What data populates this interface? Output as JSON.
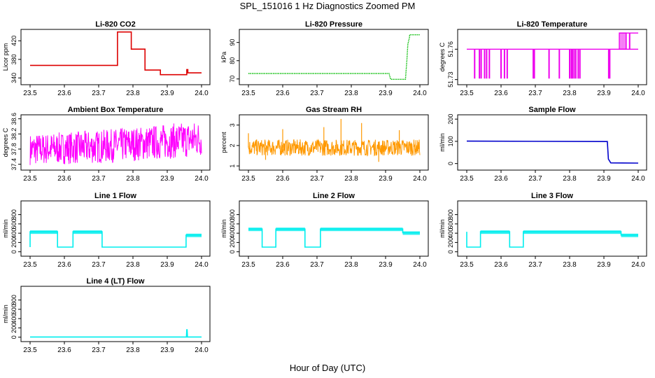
{
  "figure": {
    "title": "SPL_151016  1 Hz Diagnostics Zoomed PM",
    "xlabel": "Hour of Day (UTC)"
  },
  "chart_data": [
    {
      "type": "line",
      "title": "Li-820 CO2",
      "xlabel": "",
      "ylabel": "Licor ppm",
      "xlim": [
        23.5,
        24.0
      ],
      "ylim": [
        330,
        440
      ],
      "xticks": [
        "23.5",
        "23.6",
        "23.7",
        "23.8",
        "23.9",
        "24.0"
      ],
      "yticks": [
        340,
        380,
        420
      ],
      "color": "#dd0000",
      "style": "step",
      "series": [
        {
          "x": [
            23.5,
            23.755,
            23.755,
            23.795,
            23.795,
            23.835,
            23.835,
            23.88,
            23.88,
            23.957,
            23.957,
            23.96,
            23.96,
            24.0
          ],
          "y": [
            367,
            367,
            439,
            439,
            402,
            402,
            357,
            357,
            347,
            347,
            358,
            358,
            351,
            351
          ]
        }
      ]
    },
    {
      "type": "line",
      "title": "Li-820 Pressure",
      "xlabel": "",
      "ylabel": "kPa",
      "xlim": [
        23.5,
        24.0
      ],
      "ylim": [
        68,
        96
      ],
      "xticks": [
        "23.5",
        "23.6",
        "23.7",
        "23.8",
        "23.9",
        "24.0"
      ],
      "yticks": [
        70,
        80,
        90
      ],
      "color": "#00bb00",
      "style": "dotted",
      "series": [
        {
          "x": [
            23.5,
            23.91,
            23.915,
            23.958,
            23.962,
            23.965,
            23.97,
            23.97,
            24.0
          ],
          "y": [
            73,
            73,
            69.8,
            69.8,
            80,
            89,
            93,
            94.2,
            94.2
          ]
        }
      ]
    },
    {
      "type": "line",
      "title": "Li-820 Temperature",
      "xlabel": "",
      "ylabel": "degrees C",
      "xlim": [
        23.5,
        24.0
      ],
      "ylim": [
        51.727,
        51.7775
      ],
      "xticks": [
        "23.5",
        "23.6",
        "23.7",
        "23.8",
        "23.9",
        "24.0"
      ],
      "yticks": [
        51.73,
        51.76
      ],
      "color": "#ee00ee",
      "style": "baseline-drops",
      "baseline": 51.76,
      "drops": [
        23.523,
        23.537,
        23.542,
        23.552,
        23.558,
        23.566,
        23.6,
        23.61,
        23.618,
        23.694,
        23.697,
        23.74,
        23.77,
        23.8,
        23.805,
        23.808,
        23.813,
        23.818,
        23.825,
        23.83,
        23.914,
        23.917
      ],
      "drop_to": 51.731,
      "highs": [
        [
          23.945,
          23.965
        ],
        [
          23.965,
          24.0
        ],
        [
          23.975,
          23.978
        ]
      ],
      "high_to": 51.776
    },
    {
      "type": "line",
      "title": "Ambient Box Temperature",
      "xlabel": "",
      "ylabel": "degrees C",
      "xlim": [
        23.5,
        24.0
      ],
      "ylim": [
        37.3,
        38.65
      ],
      "xticks": [
        "23.5",
        "23.6",
        "23.7",
        "23.8",
        "23.9",
        "24.0"
      ],
      "yticks": [
        37.4,
        37.8,
        38.2,
        38.6
      ],
      "color": "#ff00ff",
      "style": "noise",
      "trend": {
        "x": [
          23.5,
          23.7,
          24.0
        ],
        "lo": [
          37.38,
          37.42,
          37.6
        ],
        "hi": [
          38.2,
          38.3,
          38.55
        ]
      }
    },
    {
      "type": "line",
      "title": "Gas Stream RH",
      "xlabel": "",
      "ylabel": "percent",
      "xlim": [
        23.5,
        24.0
      ],
      "ylim": [
        0.9,
        3.4
      ],
      "xticks": [
        "23.5",
        "23.6",
        "23.7",
        "23.8",
        "23.9",
        "24.0"
      ],
      "yticks": [
        1.0,
        2.0,
        3.0
      ],
      "color": "#ff9900",
      "style": "noise",
      "trend": {
        "x": [
          23.5,
          24.0
        ],
        "lo": [
          1.5,
          1.5
        ],
        "hi": [
          2.3,
          2.3
        ]
      },
      "spikes": [
        [
          23.77,
          3.3
        ],
        [
          23.83,
          3.1
        ],
        [
          23.6,
          2.8
        ],
        [
          23.72,
          2.9
        ],
        [
          23.94,
          2.75
        ],
        [
          23.5,
          2.6
        ],
        [
          23.55,
          1.3
        ],
        [
          23.88,
          1.2
        ]
      ]
    },
    {
      "type": "line",
      "title": "Sample Flow",
      "xlabel": "",
      "ylabel": "ml/min",
      "xlim": [
        23.5,
        24.0
      ],
      "ylim": [
        -20,
        210
      ],
      "xticks": [
        "23.5",
        "23.6",
        "23.7",
        "23.8",
        "23.9",
        "24.0"
      ],
      "yticks": [
        0,
        100,
        200
      ],
      "color": "#0000cc",
      "style": "step",
      "series": [
        {
          "x": [
            23.5,
            23.91,
            23.913,
            23.92,
            24.0
          ],
          "y": [
            101,
            99,
            20,
            3,
            2
          ]
        }
      ]
    },
    {
      "type": "line",
      "title": "Line 1 Flow",
      "xlabel": "",
      "ylabel": "ml/min",
      "xlim": [
        23.5,
        24.0
      ],
      "ylim": [
        -50,
        1050
      ],
      "xticks": [
        "23.5",
        "23.6",
        "23.7",
        "23.8",
        "23.9",
        "24.0"
      ],
      "yticks": [
        0,
        200,
        400,
        600,
        800
      ],
      "color": "#00eeee",
      "style": "step",
      "series": [
        {
          "x": [
            23.5,
            23.5,
            23.58,
            23.58,
            23.625,
            23.625,
            23.71,
            23.71,
            23.955,
            23.955,
            24.0
          ],
          "y": [
            100,
            430,
            430,
            100,
            100,
            430,
            430,
            100,
            100,
            360,
            360
          ]
        }
      ]
    },
    {
      "type": "line",
      "title": "Line 2 Flow",
      "xlabel": "",
      "ylabel": "ml/min",
      "xlim": [
        23.5,
        24.0
      ],
      "ylim": [
        -50,
        1050
      ],
      "xticks": [
        "23.5",
        "23.6",
        "23.7",
        "23.8",
        "23.9",
        "24.0"
      ],
      "yticks": [
        0,
        200,
        400,
        600,
        800
      ],
      "color": "#00eeee",
      "style": "step",
      "series": [
        {
          "x": [
            23.5,
            23.54,
            23.54,
            23.58,
            23.58,
            23.665,
            23.665,
            23.71,
            23.71,
            23.95,
            23.95,
            24.0
          ],
          "y": [
            490,
            490,
            100,
            100,
            490,
            490,
            100,
            100,
            490,
            490,
            410,
            410
          ]
        }
      ]
    },
    {
      "type": "line",
      "title": "Line 3 Flow",
      "xlabel": "",
      "ylabel": "ml/min",
      "xlim": [
        23.5,
        24.0
      ],
      "ylim": [
        -50,
        1050
      ],
      "xticks": [
        "23.5",
        "23.6",
        "23.7",
        "23.8",
        "23.9",
        "24.0"
      ],
      "yticks": [
        0,
        200,
        400,
        600,
        800
      ],
      "color": "#00eeee",
      "style": "step",
      "series": [
        {
          "x": [
            23.5,
            23.5,
            23.5,
            23.54,
            23.54,
            23.625,
            23.625,
            23.665,
            23.665,
            23.95,
            23.95,
            24.0
          ],
          "y": [
            430,
            100,
            100,
            100,
            430,
            430,
            100,
            100,
            430,
            430,
            360,
            360
          ]
        }
      ]
    },
    {
      "type": "line",
      "title": "Line 4 (LT) Flow",
      "xlabel": "",
      "ylabel": "ml/min",
      "xlim": [
        23.5,
        24.0
      ],
      "ylim": [
        -50,
        1050
      ],
      "xticks": [
        "23.5",
        "23.6",
        "23.7",
        "23.8",
        "23.9",
        "24.0"
      ],
      "yticks": [
        0,
        200,
        400,
        600,
        800
      ],
      "color": "#00eeee",
      "style": "step",
      "series": [
        {
          "x": [
            23.5,
            23.956,
            23.957,
            23.958,
            23.959,
            24.0
          ],
          "y": [
            5,
            5,
            160,
            160,
            5,
            5
          ]
        }
      ]
    }
  ]
}
